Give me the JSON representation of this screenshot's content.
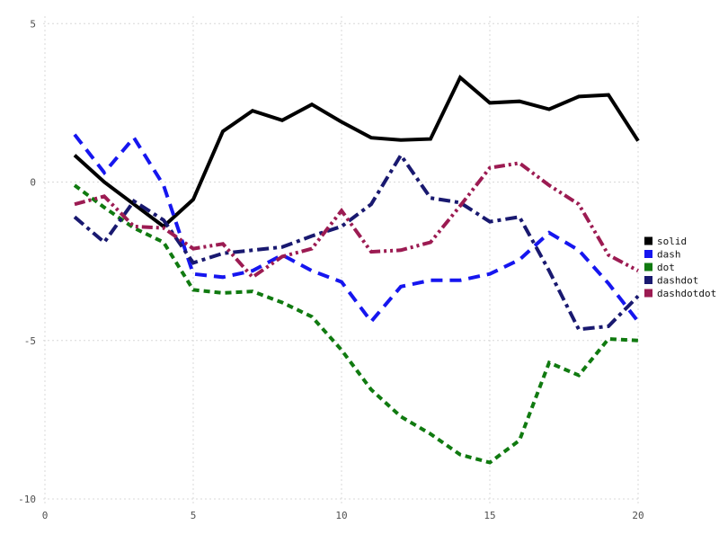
{
  "figure": {
    "background": "#ffffff",
    "grid_color": "#d8d8d8",
    "tick_label_color": "#4f4f4f",
    "legend_text_color": "#141414"
  },
  "chart_data": {
    "type": "line",
    "title": "",
    "xlabel": "",
    "ylabel": "",
    "xlim": [
      0,
      20
    ],
    "ylim": [
      -10,
      5
    ],
    "xticks": [
      0,
      5,
      10,
      15,
      20
    ],
    "yticks": [
      5,
      0,
      -5,
      -10
    ],
    "grid": true,
    "legend_position": "right-outside",
    "x": [
      1,
      2,
      3,
      4,
      5,
      6,
      7,
      8,
      9,
      10,
      11,
      12,
      13,
      14,
      15,
      16,
      17,
      18,
      19,
      20
    ],
    "series": [
      {
        "name": "solid",
        "color": "#000000",
        "dash": "solid",
        "values": [
          0.85,
          0.0,
          -0.7,
          -1.4,
          -0.55,
          1.6,
          2.25,
          1.95,
          2.45,
          1.9,
          1.4,
          1.33,
          1.36,
          3.3,
          2.5,
          2.55,
          2.3,
          2.7,
          2.75,
          1.3
        ]
      },
      {
        "name": "dash",
        "color": "#1616ef",
        "dash": "dash",
        "values": [
          1.5,
          0.3,
          1.4,
          -0.1,
          -2.9,
          -3.0,
          -2.8,
          -2.3,
          -2.8,
          -3.15,
          -4.4,
          -3.3,
          -3.1,
          -3.1,
          -2.9,
          -2.45,
          -1.6,
          -2.15,
          -3.2,
          -4.4
        ]
      },
      {
        "name": "dot",
        "color": "#107a10",
        "dash": "dot",
        "values": [
          -0.1,
          -0.8,
          -1.45,
          -1.9,
          -3.4,
          -3.5,
          -3.45,
          -3.8,
          -4.25,
          -5.3,
          -6.55,
          -7.4,
          -7.95,
          -8.6,
          -8.85,
          -8.15,
          -5.7,
          -6.1,
          -4.95,
          -5.0
        ]
      },
      {
        "name": "dashdot",
        "color": "#191970",
        "dash": "dashdot",
        "values": [
          -1.1,
          -1.9,
          -0.6,
          -1.2,
          -2.55,
          -2.25,
          -2.15,
          -2.05,
          -1.7,
          -1.4,
          -0.7,
          0.85,
          -0.5,
          -0.65,
          -1.25,
          -1.1,
          -2.8,
          -4.65,
          -4.55,
          -3.6
        ]
      },
      {
        "name": "dashdotdot",
        "color": "#9c1b52",
        "dash": "dashdotdot",
        "values": [
          -0.7,
          -0.45,
          -1.4,
          -1.45,
          -2.1,
          -1.95,
          -3.0,
          -2.35,
          -2.1,
          -0.9,
          -2.2,
          -2.15,
          -1.9,
          -0.75,
          0.45,
          0.6,
          -0.1,
          -0.7,
          -2.3,
          -2.8
        ]
      }
    ]
  }
}
